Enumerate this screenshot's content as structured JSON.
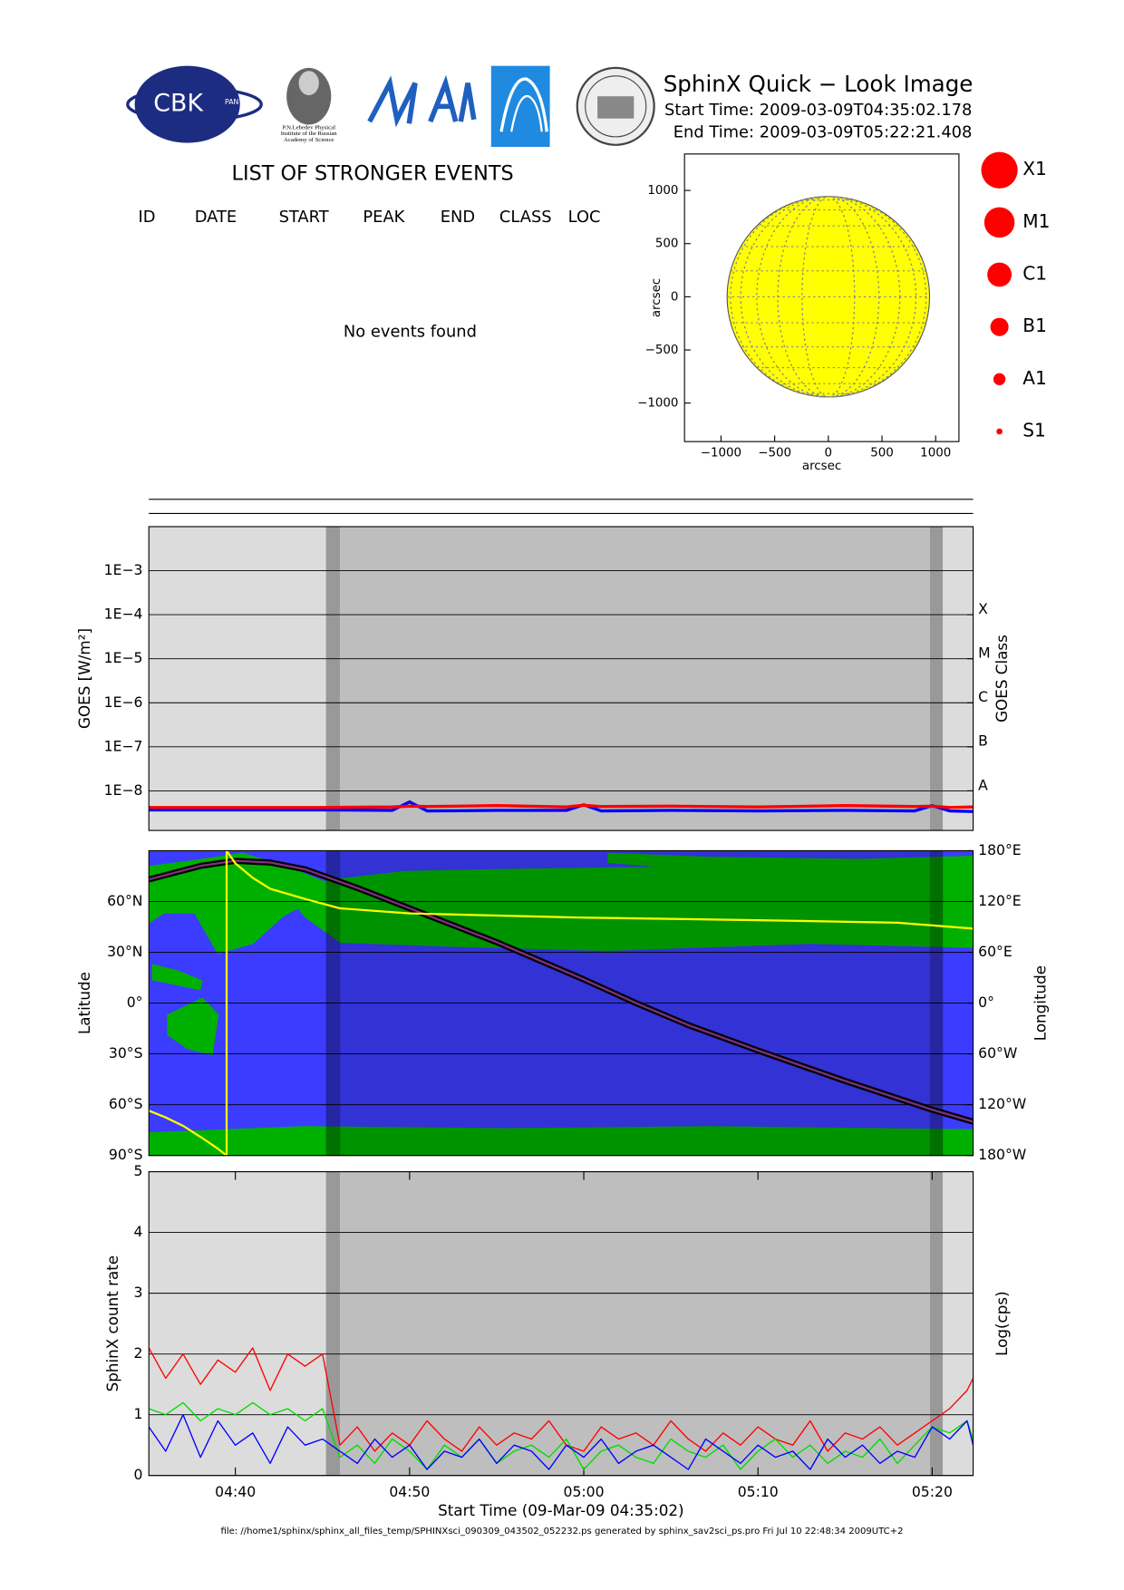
{
  "header": {
    "title": "SphinX Quick − Look Image",
    "start_time": "Start Time: 2009-03-09T04:35:02.178",
    "end_time": "End Time: 2009-03-09T05:22:21.408"
  },
  "logos": {
    "cbk": "CBK",
    "pan": "PAN",
    "lebedev": [
      "P.N.Lebedev Physical",
      "Institute of the Russian",
      "Academy of Science"
    ]
  },
  "events": {
    "title": "LIST OF STRONGER EVENTS",
    "columns": [
      "ID",
      "DATE",
      "START",
      "PEAK",
      "END",
      "CLASS",
      "LOC"
    ],
    "message": "No events found"
  },
  "class_legend": {
    "labels": [
      "X1",
      "M1",
      "C1",
      "B1",
      "A1",
      "S1"
    ],
    "color": "#ff0000"
  },
  "time_shading": [
    {
      "start": "04:35:02",
      "end": "04:45:12",
      "color": "#dcdcdc"
    },
    {
      "start": "04:45:12",
      "end": "04:46:01",
      "color": "#999999"
    },
    {
      "start": "04:46:01",
      "end": "05:19:52",
      "color": "#bebebe"
    },
    {
      "start": "05:19:52",
      "end": "05:20:37",
      "color": "#999999"
    },
    {
      "start": "05:20:37",
      "end": "05:22:21",
      "color": "#dcdcdc"
    }
  ],
  "chart_data": [
    {
      "type": "disk",
      "xlabel": "arcsec",
      "ylabel": "arcsec",
      "xlim": [
        -1340,
        1217
      ],
      "ylim": [
        -1362,
        1343
      ],
      "xticks": [
        {
          "value": -1000,
          "label": "−1000"
        },
        {
          "value": -500,
          "label": "−500"
        },
        0,
        500,
        1000
      ],
      "yticks": [
        {
          "value": -1000,
          "label": "−1000"
        },
        {
          "value": -500,
          "label": "−500"
        },
        0,
        500,
        1000
      ],
      "radius": 943,
      "color": "#ffff00"
    },
    {
      "type": "line",
      "log": true,
      "ylabel": "GOES [W/m²]",
      "y2label": "GOES Class",
      "xlim": [
        "04:35:02",
        "05:22:21"
      ],
      "ylim": [
        1.26e-09,
        0.01
      ],
      "yticks": [
        {
          "value": 0.001,
          "label": "1E−3"
        },
        {
          "value": 0.0001,
          "label": "1E−4"
        },
        {
          "value": 1e-05,
          "label": "1E−5"
        },
        {
          "value": 1e-06,
          "label": "1E−6"
        },
        {
          "value": 1e-07,
          "label": "1E−7"
        },
        {
          "value": 1e-08,
          "label": "1E−8"
        }
      ],
      "y2lim": [
        1.26e-09,
        0.01
      ],
      "y2ticks": [
        {
          "value": 0.0001,
          "label": "X"
        },
        {
          "value": 1e-05,
          "label": "M"
        },
        {
          "value": 1e-06,
          "label": "C"
        },
        {
          "value": 1e-07,
          "label": "B"
        },
        {
          "value": 1e-08,
          "label": "A"
        }
      ],
      "grid": true,
      "x": [
        "04:35:02",
        "04:40",
        "04:45",
        "04:49",
        "04:50",
        "04:51",
        "04:55",
        "04:59",
        "05:00",
        "05:01",
        "05:05",
        "05:10",
        "05:15",
        "05:19",
        "05:20",
        "05:21",
        "05:22:21"
      ],
      "series": [
        {
          "color": "#0000ff",
          "values": [
            3.7e-09,
            3.7e-09,
            3.7e-09,
            3.6e-09,
            5.6e-09,
            3.5e-09,
            3.6e-09,
            3.6e-09,
            4.8e-09,
            3.5e-09,
            3.6e-09,
            3.5e-09,
            3.6e-09,
            3.5e-09,
            4.6e-09,
            3.5e-09,
            3.4e-09
          ]
        },
        {
          "color": "#ff0000",
          "values": [
            4.2e-09,
            4.2e-09,
            4.2e-09,
            4.3e-09,
            4.5e-09,
            4.4e-09,
            4.6e-09,
            4.3e-09,
            4.7e-09,
            4.4e-09,
            4.5e-09,
            4.3e-09,
            4.6e-09,
            4.4e-09,
            4.5e-09,
            4.2e-09,
            4.3e-09
          ]
        }
      ]
    },
    {
      "type": "map",
      "ylabel": "Latitude",
      "y2label": "Longitude",
      "xlim": [
        "04:35:02",
        "05:22:21"
      ],
      "ylim": [
        -90,
        90
      ],
      "yticks": [
        {
          "value": 60,
          "label": "60°N"
        },
        {
          "value": 30,
          "label": "30°N"
        },
        {
          "value": 0,
          "label": "0°"
        },
        {
          "value": -30,
          "label": "30°S"
        },
        {
          "value": -60,
          "label": "60°S"
        },
        {
          "value": -90,
          "label": "90°S"
        }
      ],
      "y2lim": [
        -180,
        180
      ],
      "y2ticks": [
        {
          "value": 180,
          "label": "180°E"
        },
        {
          "value": 120,
          "label": "120°E"
        },
        {
          "value": 60,
          "label": "60°E"
        },
        {
          "value": 0,
          "label": "0°"
        },
        {
          "value": -60,
          "label": "60°W"
        },
        {
          "value": -120,
          "label": "120°W"
        },
        {
          "value": -180,
          "label": "180°W"
        }
      ],
      "grid": true,
      "series": [
        {
          "color": "#000000",
          "x": [
            "04:35:02",
            "04:38",
            "04:40",
            "04:42",
            "04:44",
            "04:47",
            "04:50",
            "04:55",
            "05:00",
            "05:03",
            "05:06",
            "05:10",
            "05:15",
            "05:20",
            "05:22:21"
          ],
          "values": [
            73,
            81,
            84,
            83,
            79,
            68,
            56,
            36,
            14,
            0,
            -13,
            -28,
            -46,
            -63,
            -70
          ]
        },
        {
          "color": "#ffff00",
          "axis": "y2",
          "x": [
            "04:35:02",
            "04:36",
            "04:37",
            "04:38",
            "04:39",
            "04:39:30",
            "04:39:30",
            "04:40",
            "04:41",
            "04:42",
            "04:44",
            "04:46",
            "04:50",
            "05:00",
            "05:10",
            "05:18",
            "05:22:21"
          ],
          "values": [
            -127,
            -135,
            -145,
            -158,
            -172,
            -180,
            180,
            165,
            148,
            135,
            123,
            112,
            106,
            101,
            98,
            95,
            88
          ]
        }
      ]
    },
    {
      "type": "line",
      "ylabel": "SphinX count rate",
      "y2label": "Log(cps)",
      "xlabel": "Start Time (09-Mar-09 04:35:02)",
      "xlim": [
        "04:35:02",
        "05:22:21"
      ],
      "ylim": [
        0,
        5
      ],
      "yticks": [
        0,
        1,
        2,
        3,
        4,
        5
      ],
      "xticks": [
        "04:40",
        "04:50",
        "05:00",
        "05:10",
        "05:20"
      ],
      "grid": true,
      "x": [
        "04:35:02",
        "04:36",
        "04:37",
        "04:38",
        "04:39",
        "04:40",
        "04:41",
        "04:42",
        "04:43",
        "04:44",
        "04:45",
        "04:46",
        "04:47",
        "04:48",
        "04:49",
        "04:50",
        "04:51",
        "04:52",
        "04:53",
        "04:54",
        "04:55",
        "04:56",
        "04:57",
        "04:58",
        "04:59",
        "05:00",
        "05:01",
        "05:02",
        "05:03",
        "05:04",
        "05:05",
        "05:06",
        "05:07",
        "05:08",
        "05:09",
        "05:10",
        "05:11",
        "05:12",
        "05:13",
        "05:14",
        "05:15",
        "05:16",
        "05:17",
        "05:18",
        "05:19",
        "05:20",
        "05:21",
        "05:22",
        "05:22:21"
      ],
      "series": [
        {
          "color": "#ff0000",
          "values": [
            2.1,
            1.6,
            2.0,
            1.5,
            1.9,
            1.7,
            2.1,
            1.4,
            2.0,
            1.8,
            2.0,
            0.5,
            0.8,
            0.4,
            0.7,
            0.5,
            0.9,
            0.6,
            0.4,
            0.8,
            0.5,
            0.7,
            0.6,
            0.9,
            0.5,
            0.4,
            0.8,
            0.6,
            0.7,
            0.5,
            0.9,
            0.6,
            0.4,
            0.7,
            0.5,
            0.8,
            0.6,
            0.5,
            0.9,
            0.4,
            0.7,
            0.6,
            0.8,
            0.5,
            0.7,
            0.9,
            1.1,
            1.4,
            1.6
          ]
        },
        {
          "color": "#00dd00",
          "values": [
            1.1,
            1.0,
            1.2,
            0.9,
            1.1,
            1.0,
            1.2,
            1.0,
            1.1,
            0.9,
            1.1,
            0.3,
            0.5,
            0.2,
            0.6,
            0.4,
            0.1,
            0.5,
            0.3,
            0.6,
            0.2,
            0.4,
            0.5,
            0.3,
            0.6,
            0.1,
            0.4,
            0.5,
            0.3,
            0.2,
            0.6,
            0.4,
            0.3,
            0.5,
            0.1,
            0.4,
            0.6,
            0.3,
            0.5,
            0.2,
            0.4,
            0.3,
            0.6,
            0.2,
            0.5,
            0.8,
            0.7,
            0.9,
            0.6
          ]
        },
        {
          "color": "#0000ff",
          "values": [
            0.8,
            0.4,
            1.0,
            0.3,
            0.9,
            0.5,
            0.7,
            0.2,
            0.8,
            0.5,
            0.6,
            0.4,
            0.2,
            0.6,
            0.3,
            0.5,
            0.1,
            0.4,
            0.3,
            0.6,
            0.2,
            0.5,
            0.4,
            0.1,
            0.5,
            0.3,
            0.6,
            0.2,
            0.4,
            0.5,
            0.3,
            0.1,
            0.6,
            0.4,
            0.2,
            0.5,
            0.3,
            0.4,
            0.1,
            0.6,
            0.3,
            0.5,
            0.2,
            0.4,
            0.3,
            0.8,
            0.6,
            0.9,
            0.5
          ]
        }
      ]
    }
  ],
  "footer": "file: //home1/sphinx/sphinx_all_files_temp/SPHINXsci_090309_043502_052232.ps generated by sphinx_sav2sci_ps.pro Fri Jul 10 22:48:34 2009UTC+2"
}
